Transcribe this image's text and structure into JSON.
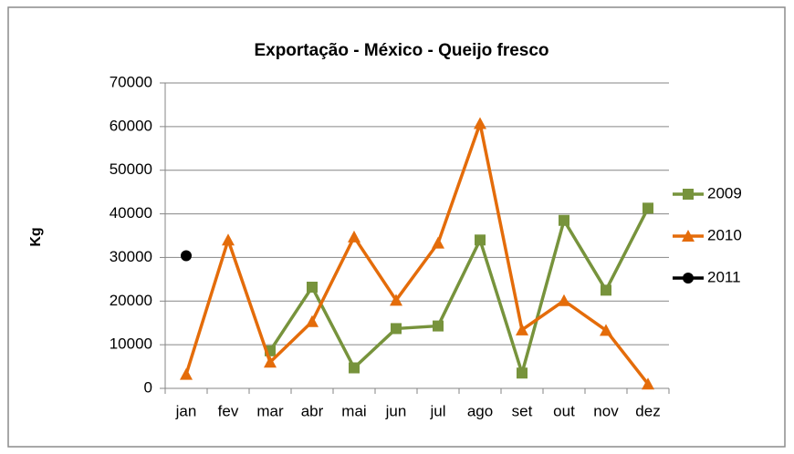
{
  "chart_data": {
    "type": "line",
    "title": "Exportação - México - Queijo fresco",
    "y_label": "Kg",
    "categories": [
      "jan",
      "fev",
      "mar",
      "abr",
      "mai",
      "jun",
      "jul",
      "ago",
      "set",
      "out",
      "nov",
      "dez"
    ],
    "series": [
      {
        "name": "2009",
        "color": "#77933c",
        "marker": "square",
        "values": [
          null,
          null,
          8600,
          23200,
          4700,
          13700,
          14300,
          34000,
          3500,
          38500,
          22500,
          41300
        ]
      },
      {
        "name": "2010",
        "color": "#e46c0a",
        "marker": "triangle",
        "values": [
          3200,
          34000,
          6000,
          15300,
          34700,
          20200,
          33300,
          60700,
          13400,
          20100,
          13300,
          1000
        ]
      },
      {
        "name": "2011",
        "color": "#000000",
        "marker": "circle",
        "values": [
          30400,
          null,
          null,
          null,
          null,
          null,
          null,
          null,
          null,
          null,
          null,
          null
        ]
      }
    ],
    "ylim": [
      0,
      70000
    ],
    "yticks": [
      0,
      10000,
      20000,
      30000,
      40000,
      50000,
      60000,
      70000
    ],
    "grid": true,
    "legend": "right"
  }
}
